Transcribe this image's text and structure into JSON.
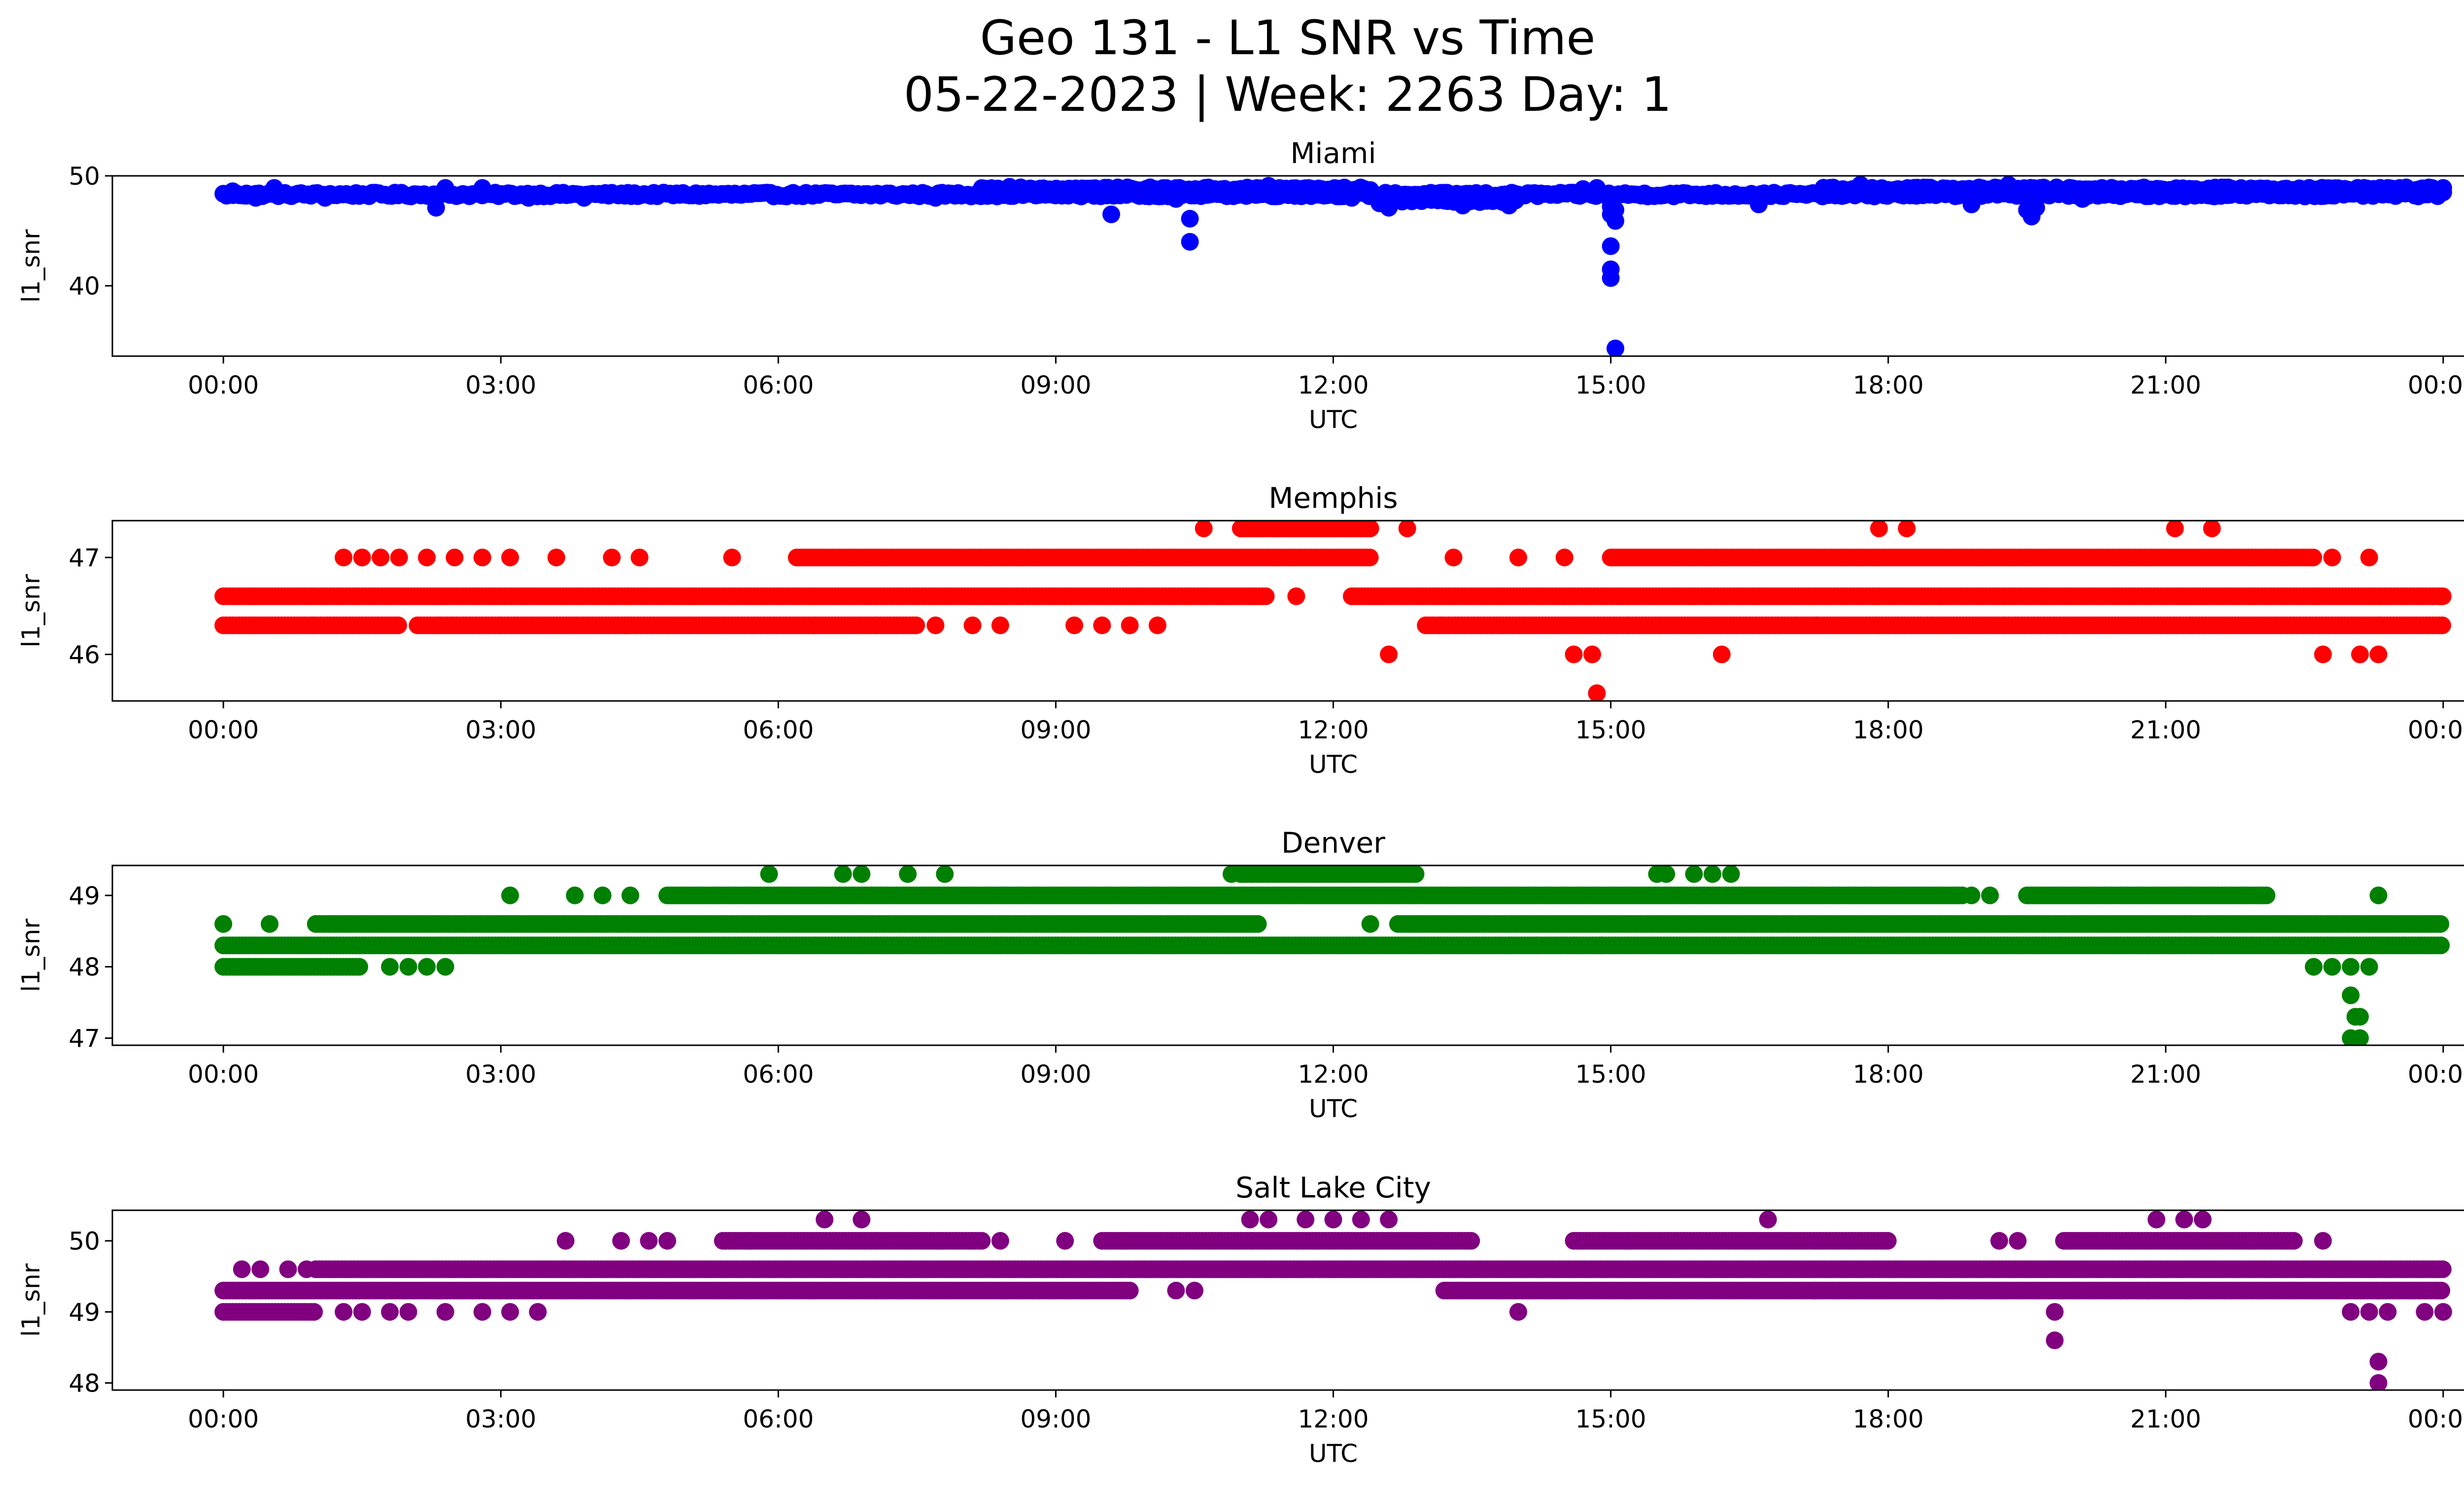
{
  "figure": {
    "title_line1": "Geo 131 - L1 SNR vs Time",
    "title_line2": "05-22-2023 | Week: 2263 Day: 1"
  },
  "chart_data": [
    {
      "type": "scatter",
      "title": "Miami",
      "xlabel": "UTC",
      "ylabel": "l1_snr",
      "color": "#0000ff",
      "x_unit": "hours UTC",
      "x_ticks": [
        "00:00",
        "03:00",
        "06:00",
        "09:00",
        "12:00",
        "15:00",
        "18:00",
        "21:00",
        "00:00"
      ],
      "y_ticks": [
        40,
        50
      ],
      "xlim_hours": [
        -1.2,
        25.2
      ],
      "ylim": [
        33.6,
        50.0
      ],
      "bands": [
        {
          "y": 48.3,
          "from": 0.0,
          "to": 24.0,
          "jitter": 0.35
        },
        {
          "y": 48.8,
          "from": 8.2,
          "to": 12.4,
          "jitter": 0.3
        },
        {
          "y": 48.8,
          "from": 17.3,
          "to": 24.0,
          "jitter": 0.3
        },
        {
          "y": 47.8,
          "from": 12.5,
          "to": 14.0,
          "jitter": 0.4
        }
      ],
      "points": [
        {
          "x": 0.1,
          "y": 48.6
        },
        {
          "x": 0.25,
          "y": 48.4
        },
        {
          "x": 0.35,
          "y": 48.0
        },
        {
          "x": 0.55,
          "y": 48.9
        },
        {
          "x": 1.1,
          "y": 48.0
        },
        {
          "x": 2.3,
          "y": 47.1
        },
        {
          "x": 2.4,
          "y": 48.9
        },
        {
          "x": 2.8,
          "y": 48.9
        },
        {
          "x": 3.3,
          "y": 48.0
        },
        {
          "x": 3.9,
          "y": 48.0
        },
        {
          "x": 7.7,
          "y": 48.0
        },
        {
          "x": 8.5,
          "y": 49.0
        },
        {
          "x": 9.6,
          "y": 46.5
        },
        {
          "x": 10.3,
          "y": 47.9
        },
        {
          "x": 10.45,
          "y": 46.1
        },
        {
          "x": 10.45,
          "y": 44.0
        },
        {
          "x": 11.3,
          "y": 49.1
        },
        {
          "x": 12.2,
          "y": 48.0
        },
        {
          "x": 12.5,
          "y": 47.5
        },
        {
          "x": 12.6,
          "y": 47.1
        },
        {
          "x": 13.4,
          "y": 47.3
        },
        {
          "x": 13.9,
          "y": 47.3
        },
        {
          "x": 14.7,
          "y": 48.8
        },
        {
          "x": 14.85,
          "y": 48.9
        },
        {
          "x": 15.0,
          "y": 48.0
        },
        {
          "x": 15.0,
          "y": 47.6
        },
        {
          "x": 15.0,
          "y": 47.2
        },
        {
          "x": 15.05,
          "y": 46.9
        },
        {
          "x": 15.0,
          "y": 46.5
        },
        {
          "x": 15.05,
          "y": 45.9
        },
        {
          "x": 15.0,
          "y": 43.6
        },
        {
          "x": 15.0,
          "y": 41.5
        },
        {
          "x": 15.0,
          "y": 40.7
        },
        {
          "x": 15.05,
          "y": 34.3
        },
        {
          "x": 16.6,
          "y": 47.4
        },
        {
          "x": 17.7,
          "y": 49.2
        },
        {
          "x": 18.9,
          "y": 47.4
        },
        {
          "x": 19.3,
          "y": 49.2
        },
        {
          "x": 19.5,
          "y": 46.9
        },
        {
          "x": 19.55,
          "y": 46.3
        },
        {
          "x": 19.6,
          "y": 47.1
        },
        {
          "x": 20.1,
          "y": 47.9
        },
        {
          "x": 23.4,
          "y": 48.9
        },
        {
          "x": 24.0,
          "y": 48.9
        },
        {
          "x": 24.0,
          "y": 48.5
        }
      ]
    },
    {
      "type": "scatter",
      "title": "Memphis",
      "xlabel": "UTC",
      "ylabel": "l1_snr",
      "color": "#ff0000",
      "x_unit": "hours UTC",
      "x_ticks": [
        "00:00",
        "03:00",
        "06:00",
        "09:00",
        "12:00",
        "15:00",
        "18:00",
        "21:00",
        "00:00"
      ],
      "y_ticks": [
        46,
        47
      ],
      "xlim_hours": [
        -1.2,
        25.2
      ],
      "ylim": [
        45.52,
        47.38
      ],
      "bands": [
        {
          "y": 46.6,
          "from": 0.0,
          "to": 11.3
        },
        {
          "y": 46.6,
          "from": 12.2,
          "to": 24.0
        },
        {
          "y": 46.3,
          "from": 0.0,
          "to": 1.9
        },
        {
          "y": 46.3,
          "from": 2.1,
          "to": 7.5
        },
        {
          "y": 46.3,
          "from": 13.0,
          "to": 24.0
        },
        {
          "y": 47.0,
          "from": 6.2,
          "to": 12.4
        },
        {
          "y": 47.0,
          "from": 15.0,
          "to": 22.6
        },
        {
          "y": 47.3,
          "from": 11.0,
          "to": 12.4
        }
      ],
      "points": [
        {
          "x": 1.3,
          "y": 47.0
        },
        {
          "x": 1.5,
          "y": 47.0
        },
        {
          "x": 1.7,
          "y": 47.0
        },
        {
          "x": 1.9,
          "y": 47.0
        },
        {
          "x": 2.2,
          "y": 47.0
        },
        {
          "x": 2.5,
          "y": 47.0
        },
        {
          "x": 2.8,
          "y": 47.0
        },
        {
          "x": 3.1,
          "y": 47.0
        },
        {
          "x": 3.6,
          "y": 47.0
        },
        {
          "x": 4.2,
          "y": 47.0
        },
        {
          "x": 4.5,
          "y": 47.0
        },
        {
          "x": 5.5,
          "y": 47.0
        },
        {
          "x": 7.7,
          "y": 46.3
        },
        {
          "x": 8.1,
          "y": 46.3
        },
        {
          "x": 8.4,
          "y": 46.3
        },
        {
          "x": 9.2,
          "y": 46.3
        },
        {
          "x": 9.5,
          "y": 46.3
        },
        {
          "x": 9.8,
          "y": 46.3
        },
        {
          "x": 10.1,
          "y": 46.3
        },
        {
          "x": 10.6,
          "y": 47.3
        },
        {
          "x": 11.6,
          "y": 46.6
        },
        {
          "x": 12.6,
          "y": 46.0
        },
        {
          "x": 12.8,
          "y": 47.3
        },
        {
          "x": 13.3,
          "y": 47.0
        },
        {
          "x": 14.0,
          "y": 47.0
        },
        {
          "x": 14.5,
          "y": 47.0
        },
        {
          "x": 14.6,
          "y": 46.0
        },
        {
          "x": 14.8,
          "y": 46.0
        },
        {
          "x": 14.85,
          "y": 45.6
        },
        {
          "x": 16.2,
          "y": 46.0
        },
        {
          "x": 17.9,
          "y": 47.3
        },
        {
          "x": 18.2,
          "y": 47.3
        },
        {
          "x": 21.1,
          "y": 47.3
        },
        {
          "x": 21.5,
          "y": 47.3
        },
        {
          "x": 22.8,
          "y": 47.0
        },
        {
          "x": 23.2,
          "y": 47.0
        },
        {
          "x": 22.7,
          "y": 46.0
        },
        {
          "x": 23.1,
          "y": 46.0
        },
        {
          "x": 23.3,
          "y": 46.0
        },
        {
          "x": 19.5,
          "y": 47.0
        }
      ]
    },
    {
      "type": "scatter",
      "title": "Denver",
      "xlabel": "UTC",
      "ylabel": "l1_snr",
      "color": "#008000",
      "x_unit": "hours UTC",
      "x_ticks": [
        "00:00",
        "03:00",
        "06:00",
        "09:00",
        "12:00",
        "15:00",
        "18:00",
        "21:00",
        "00:00"
      ],
      "y_ticks": [
        47,
        48,
        49
      ],
      "xlim_hours": [
        -1.2,
        25.2
      ],
      "ylim": [
        46.9,
        49.42
      ],
      "bands": [
        {
          "y": 48.3,
          "from": 0.0,
          "to": 24.0
        },
        {
          "y": 48.6,
          "from": 1.0,
          "to": 11.2
        },
        {
          "y": 48.6,
          "from": 12.7,
          "to": 24.0
        },
        {
          "y": 49.0,
          "from": 4.8,
          "to": 18.8
        },
        {
          "y": 49.0,
          "from": 19.5,
          "to": 22.1
        },
        {
          "y": 48.0,
          "from": 0.0,
          "to": 1.5
        },
        {
          "y": 49.3,
          "from": 11.0,
          "to": 12.9
        }
      ],
      "points": [
        {
          "x": 0.0,
          "y": 48.6
        },
        {
          "x": 0.5,
          "y": 48.6
        },
        {
          "x": 1.8,
          "y": 48.0
        },
        {
          "x": 2.0,
          "y": 48.0
        },
        {
          "x": 2.2,
          "y": 48.0
        },
        {
          "x": 2.4,
          "y": 48.0
        },
        {
          "x": 3.1,
          "y": 49.0
        },
        {
          "x": 3.8,
          "y": 49.0
        },
        {
          "x": 4.1,
          "y": 49.0
        },
        {
          "x": 4.4,
          "y": 49.0
        },
        {
          "x": 5.9,
          "y": 49.3
        },
        {
          "x": 6.7,
          "y": 49.3
        },
        {
          "x": 6.9,
          "y": 49.3
        },
        {
          "x": 7.4,
          "y": 49.3
        },
        {
          "x": 7.8,
          "y": 49.3
        },
        {
          "x": 10.9,
          "y": 49.3
        },
        {
          "x": 12.4,
          "y": 48.6
        },
        {
          "x": 15.5,
          "y": 49.3
        },
        {
          "x": 15.6,
          "y": 49.3
        },
        {
          "x": 15.9,
          "y": 49.3
        },
        {
          "x": 16.1,
          "y": 49.3
        },
        {
          "x": 16.3,
          "y": 49.3
        },
        {
          "x": 18.9,
          "y": 49.0
        },
        {
          "x": 19.1,
          "y": 49.0
        },
        {
          "x": 21.5,
          "y": 48.3
        },
        {
          "x": 22.6,
          "y": 48.0
        },
        {
          "x": 22.8,
          "y": 48.0
        },
        {
          "x": 23.0,
          "y": 48.0
        },
        {
          "x": 23.0,
          "y": 47.6
        },
        {
          "x": 23.05,
          "y": 47.3
        },
        {
          "x": 23.0,
          "y": 47.0
        },
        {
          "x": 23.1,
          "y": 47.0
        },
        {
          "x": 23.1,
          "y": 47.3
        },
        {
          "x": 23.3,
          "y": 49.0
        },
        {
          "x": 23.2,
          "y": 48.0
        },
        {
          "x": 13.9,
          "y": 48.3
        },
        {
          "x": 14.2,
          "y": 48.3
        },
        {
          "x": 14.6,
          "y": 48.3
        },
        {
          "x": 14.9,
          "y": 48.3
        },
        {
          "x": 20.8,
          "y": 48.3
        }
      ]
    },
    {
      "type": "scatter",
      "title": "Salt Lake City",
      "xlabel": "UTC",
      "ylabel": "l1_snr",
      "color": "#800080",
      "x_unit": "hours UTC",
      "x_ticks": [
        "00:00",
        "03:00",
        "06:00",
        "09:00",
        "12:00",
        "15:00",
        "18:00",
        "21:00",
        "00:00"
      ],
      "y_ticks": [
        48,
        49,
        50
      ],
      "xlim_hours": [
        -1.2,
        25.2
      ],
      "ylim": [
        47.9,
        50.43
      ],
      "bands": [
        {
          "y": 49.3,
          "from": 0.0,
          "to": 9.8
        },
        {
          "y": 49.3,
          "from": 13.2,
          "to": 24.0
        },
        {
          "y": 49.6,
          "from": 1.0,
          "to": 24.0
        },
        {
          "y": 50.0,
          "from": 5.4,
          "to": 8.2
        },
        {
          "y": 50.0,
          "from": 9.5,
          "to": 13.5
        },
        {
          "y": 50.0,
          "from": 14.6,
          "to": 18.0
        },
        {
          "y": 50.0,
          "from": 19.9,
          "to": 22.4
        },
        {
          "y": 49.0,
          "from": 0.0,
          "to": 1.0
        }
      ],
      "points": [
        {
          "x": 0.2,
          "y": 49.6
        },
        {
          "x": 0.4,
          "y": 49.6
        },
        {
          "x": 0.7,
          "y": 49.6
        },
        {
          "x": 0.9,
          "y": 49.6
        },
        {
          "x": 1.3,
          "y": 49.0
        },
        {
          "x": 1.5,
          "y": 49.0
        },
        {
          "x": 1.8,
          "y": 49.0
        },
        {
          "x": 2.0,
          "y": 49.0
        },
        {
          "x": 2.4,
          "y": 49.0
        },
        {
          "x": 2.8,
          "y": 49.0
        },
        {
          "x": 3.1,
          "y": 49.0
        },
        {
          "x": 3.4,
          "y": 49.0
        },
        {
          "x": 3.7,
          "y": 50.0
        },
        {
          "x": 4.3,
          "y": 50.0
        },
        {
          "x": 4.6,
          "y": 50.0
        },
        {
          "x": 4.8,
          "y": 50.0
        },
        {
          "x": 6.5,
          "y": 50.3
        },
        {
          "x": 6.9,
          "y": 50.3
        },
        {
          "x": 8.4,
          "y": 50.0
        },
        {
          "x": 9.1,
          "y": 50.0
        },
        {
          "x": 10.3,
          "y": 49.3
        },
        {
          "x": 10.5,
          "y": 49.3
        },
        {
          "x": 11.1,
          "y": 50.3
        },
        {
          "x": 11.3,
          "y": 50.3
        },
        {
          "x": 11.7,
          "y": 50.3
        },
        {
          "x": 12.0,
          "y": 50.3
        },
        {
          "x": 12.3,
          "y": 50.3
        },
        {
          "x": 12.6,
          "y": 50.3
        },
        {
          "x": 14.0,
          "y": 49.0
        },
        {
          "x": 16.7,
          "y": 50.3
        },
        {
          "x": 17.2,
          "y": 49.3
        },
        {
          "x": 17.4,
          "y": 49.3
        },
        {
          "x": 19.2,
          "y": 50.0
        },
        {
          "x": 19.4,
          "y": 50.0
        },
        {
          "x": 19.8,
          "y": 49.0
        },
        {
          "x": 19.8,
          "y": 48.6
        },
        {
          "x": 20.8,
          "y": 49.3
        },
        {
          "x": 20.9,
          "y": 50.3
        },
        {
          "x": 21.2,
          "y": 50.3
        },
        {
          "x": 21.4,
          "y": 50.3
        },
        {
          "x": 22.7,
          "y": 50.0
        },
        {
          "x": 23.0,
          "y": 49.0
        },
        {
          "x": 23.2,
          "y": 49.0
        },
        {
          "x": 23.4,
          "y": 49.0
        },
        {
          "x": 23.8,
          "y": 49.0
        },
        {
          "x": 24.0,
          "y": 49.0
        },
        {
          "x": 23.3,
          "y": 48.3
        },
        {
          "x": 23.3,
          "y": 48.0
        }
      ]
    }
  ]
}
